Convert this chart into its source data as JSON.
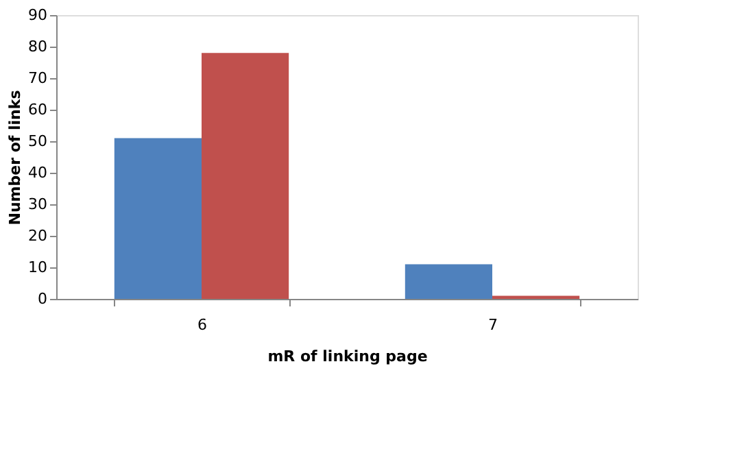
{
  "chart_data": {
    "type": "bar",
    "xlabel": "mR of linking  page",
    "ylabel": "Number of links",
    "categories": [
      "6",
      "7"
    ],
    "series": [
      {
        "color": "#4f81bd",
        "values": [
          51,
          11
        ]
      },
      {
        "color": "#c0504d",
        "values": [
          78,
          1
        ]
      }
    ],
    "ylim": [
      0,
      90
    ],
    "yticks": [
      0,
      10,
      20,
      30,
      40,
      50,
      60,
      70,
      80,
      90
    ],
    "grid": false,
    "legend": false
  }
}
